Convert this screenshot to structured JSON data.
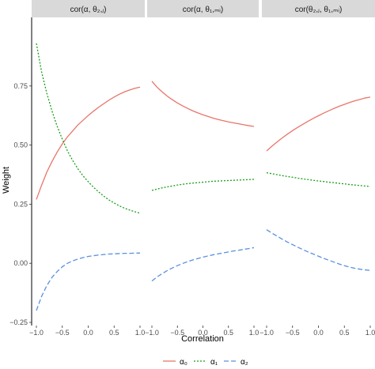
{
  "chart_data": {
    "type": "line",
    "xlabel": "Correlation",
    "ylabel": "Weight",
    "xlim": [
      -1.0,
      1.0
    ],
    "ylim": [
      -0.25,
      1.0
    ],
    "x_ticks": [
      -1.0,
      -0.5,
      0.0,
      0.5,
      1.0
    ],
    "x_tick_labels": [
      "−1.0",
      "−0.5",
      "0.0",
      "0.5",
      "1.0"
    ],
    "y_ticks": [
      -0.25,
      0.0,
      0.25,
      0.5,
      0.75
    ],
    "y_tick_labels": [
      "−0.25",
      "0.00",
      "0.25",
      "0.50",
      "0.75"
    ],
    "grid": false,
    "legend_position": "bottom",
    "series_styles": [
      {
        "label": "α₀",
        "color": "#e8756a",
        "dash": ""
      },
      {
        "label": "α₁",
        "color": "#1a9e1a",
        "dash": "2,2"
      },
      {
        "label": "α₂",
        "color": "#5b8fe0",
        "dash": "6,3"
      }
    ],
    "panels": [
      {
        "title": "cor(α, θ₂,ⱼ)",
        "x": [
          -1.0,
          -0.9,
          -0.8,
          -0.7,
          -0.6,
          -0.5,
          -0.4,
          -0.3,
          -0.2,
          -0.1,
          0.0,
          0.1,
          0.2,
          0.3,
          0.4,
          0.5,
          0.6,
          0.7,
          0.8,
          0.9,
          1.0
        ],
        "series": [
          {
            "label": "α₀",
            "values": [
              0.27,
              0.33,
              0.385,
              0.43,
              0.47,
              0.505,
              0.535,
              0.56,
              0.585,
              0.605,
              0.625,
              0.643,
              0.66,
              0.675,
              0.69,
              0.703,
              0.715,
              0.725,
              0.733,
              0.74,
              0.745
            ]
          },
          {
            "label": "α₁",
            "values": [
              0.93,
              0.81,
              0.72,
              0.645,
              0.58,
              0.525,
              0.475,
              0.435,
              0.4,
              0.37,
              0.345,
              0.322,
              0.302,
              0.284,
              0.268,
              0.255,
              0.243,
              0.233,
              0.225,
              0.218,
              0.212
            ]
          },
          {
            "label": "α₂",
            "values": [
              -0.2,
              -0.14,
              -0.095,
              -0.06,
              -0.035,
              -0.015,
              0.0,
              0.01,
              0.018,
              0.024,
              0.029,
              0.032,
              0.035,
              0.037,
              0.039,
              0.04,
              0.041,
              0.042,
              0.042,
              0.043,
              0.043
            ]
          }
        ]
      },
      {
        "title": "cor(α, θ₁,ₘᵢ)",
        "x": [
          -1.0,
          -0.9,
          -0.8,
          -0.7,
          -0.6,
          -0.5,
          -0.4,
          -0.3,
          -0.2,
          -0.1,
          0.0,
          0.1,
          0.2,
          0.3,
          0.4,
          0.5,
          0.6,
          0.7,
          0.8,
          0.9,
          1.0
        ],
        "series": [
          {
            "label": "α₀",
            "values": [
              0.77,
              0.745,
              0.725,
              0.707,
              0.692,
              0.678,
              0.666,
              0.655,
              0.645,
              0.636,
              0.628,
              0.621,
              0.614,
              0.608,
              0.603,
              0.598,
              0.594,
              0.59,
              0.586,
              0.582,
              0.579
            ]
          },
          {
            "label": "α₁",
            "values": [
              0.308,
              0.314,
              0.319,
              0.323,
              0.327,
              0.331,
              0.334,
              0.337,
              0.339,
              0.341,
              0.343,
              0.345,
              0.347,
              0.348,
              0.349,
              0.35,
              0.351,
              0.352,
              0.353,
              0.354,
              0.355
            ]
          },
          {
            "label": "α₂",
            "values": [
              -0.075,
              -0.058,
              -0.044,
              -0.031,
              -0.02,
              -0.01,
              -0.001,
              0.007,
              0.014,
              0.02,
              0.026,
              0.031,
              0.036,
              0.04,
              0.044,
              0.048,
              0.052,
              0.055,
              0.059,
              0.062,
              0.066
            ]
          }
        ]
      },
      {
        "title": "cor(θ₂,ⱼ, θ₁,ₘᵢ)",
        "x": [
          -1.0,
          -0.9,
          -0.8,
          -0.7,
          -0.6,
          -0.5,
          -0.4,
          -0.3,
          -0.2,
          -0.1,
          0.0,
          0.1,
          0.2,
          0.3,
          0.4,
          0.5,
          0.6,
          0.7,
          0.8,
          0.9,
          1.0
        ],
        "series": [
          {
            "label": "α₀",
            "values": [
              0.475,
              0.495,
              0.513,
              0.53,
              0.546,
              0.561,
              0.575,
              0.588,
              0.601,
              0.613,
              0.624,
              0.635,
              0.645,
              0.655,
              0.664,
              0.672,
              0.68,
              0.687,
              0.693,
              0.699,
              0.703
            ]
          },
          {
            "label": "α₁",
            "values": [
              0.383,
              0.379,
              0.375,
              0.371,
              0.367,
              0.364,
              0.36,
              0.357,
              0.354,
              0.351,
              0.348,
              0.346,
              0.343,
              0.341,
              0.338,
              0.336,
              0.333,
              0.331,
              0.329,
              0.327,
              0.325
            ]
          },
          {
            "label": "α₂",
            "values": [
              0.142,
              0.128,
              0.115,
              0.102,
              0.09,
              0.079,
              0.068,
              0.058,
              0.048,
              0.039,
              0.03,
              0.021,
              0.013,
              0.005,
              -0.003,
              -0.01,
              -0.016,
              -0.021,
              -0.025,
              -0.028,
              -0.03
            ]
          }
        ]
      }
    ]
  }
}
